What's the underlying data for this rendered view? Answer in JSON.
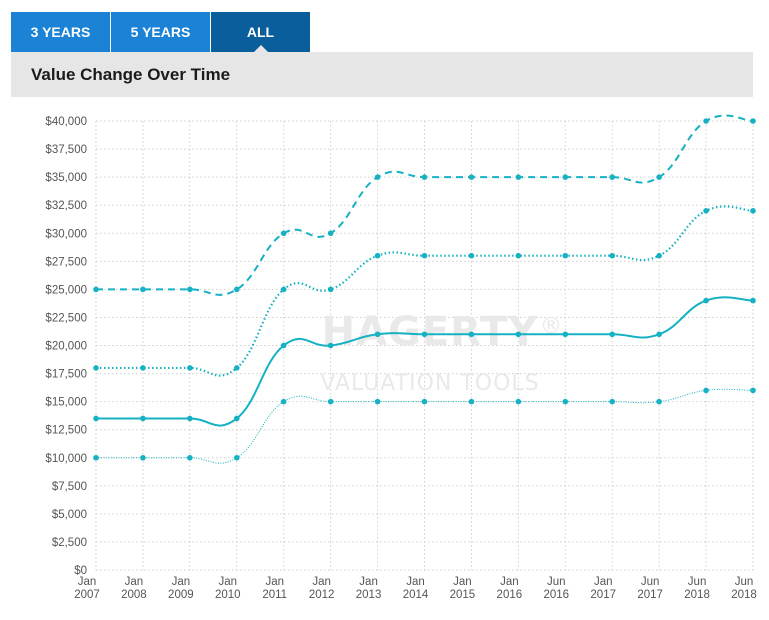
{
  "tabs": [
    {
      "label": "3 YEARS",
      "active": false
    },
    {
      "label": "5 YEARS",
      "active": false
    },
    {
      "label": "ALL",
      "active": true
    }
  ],
  "header": {
    "title": "Value Change Over Time"
  },
  "watermark": {
    "brand": "HAGERTY",
    "mark": "®",
    "tagline": "VALUATION TOOLS"
  },
  "colors": {
    "accent": "#1b82d6",
    "tab_active": "#0a5e9c",
    "series": "#16b1c3",
    "header_bg": "#e6e6e6"
  },
  "chart_data": {
    "type": "line",
    "title": "Value Change Over Time",
    "xlabel": "",
    "ylabel": "",
    "ylim": [
      0,
      40000
    ],
    "grid": true,
    "y_ticks": [
      "$0",
      "$2,500",
      "$5,000",
      "$7,500",
      "$10,000",
      "$12,500",
      "$15,000",
      "$17,500",
      "$20,000",
      "$22,500",
      "$25,000",
      "$27,500",
      "$30,000",
      "$32,500",
      "$35,000",
      "$37,500",
      "$40,000"
    ],
    "categories": [
      [
        "Jan",
        "2007"
      ],
      [
        "Jan",
        "2008"
      ],
      [
        "Jan",
        "2009"
      ],
      [
        "Jan",
        "2010"
      ],
      [
        "Jan",
        "2011"
      ],
      [
        "Jan",
        "2012"
      ],
      [
        "Jan",
        "2013"
      ],
      [
        "Jan",
        "2014"
      ],
      [
        "Jan",
        "2015"
      ],
      [
        "Jan",
        "2016"
      ],
      [
        "Jun",
        "2016"
      ],
      [
        "Jan",
        "2017"
      ],
      [
        "Jun",
        "2017"
      ],
      [
        "Jun",
        "2018"
      ],
      [
        "Jun",
        "2018"
      ]
    ],
    "series": [
      {
        "style": "dashed",
        "values": [
          25000,
          25000,
          25000,
          25000,
          30000,
          30000,
          35000,
          35000,
          35000,
          35000,
          35000,
          35000,
          35000,
          40000,
          40000
        ]
      },
      {
        "style": "dotted",
        "values": [
          18000,
          18000,
          18000,
          18000,
          25000,
          25000,
          28000,
          28000,
          28000,
          28000,
          28000,
          28000,
          28000,
          32000,
          32000
        ]
      },
      {
        "style": "solid",
        "values": [
          13500,
          13500,
          13500,
          13500,
          20000,
          20000,
          21000,
          21000,
          21000,
          21000,
          21000,
          21000,
          21000,
          24000,
          24000
        ]
      },
      {
        "style": "thin",
        "values": [
          10000,
          10000,
          10000,
          10000,
          15000,
          15000,
          15000,
          15000,
          15000,
          15000,
          15000,
          15000,
          15000,
          16000,
          16000
        ]
      }
    ]
  }
}
